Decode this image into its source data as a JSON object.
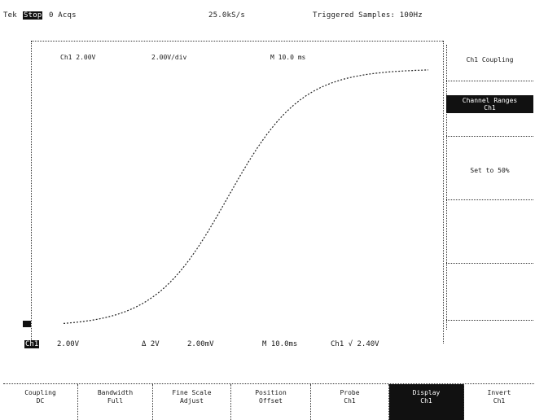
{
  "status": {
    "mode_label": "Tek",
    "run_state": "Stop",
    "acquisitions": "0 Acqs",
    "sample_rate": "25.0kS/s",
    "trigger_info": "Triggered Samples: 100Hz"
  },
  "screen_labels": {
    "top_left": "Ch1 2.00V",
    "top_mid": "2.00V/div",
    "top_right": "M 10.0 ms"
  },
  "trace": {
    "shape": "s-curve",
    "low_level": 0.03,
    "high_level": 0.88
  },
  "readouts": {
    "ch1_marker": "Ch1",
    "r1": "2.00V",
    "r2": "Δ 2V",
    "r3": "2.00mV",
    "r4": "M 10.0ms",
    "r5": "Ch1 √ 2.40V"
  },
  "side_menu": {
    "items": [
      {
        "label": "Ch1 Coupling"
      },
      {
        "label": "Channel Ranges",
        "sub": "Ch1",
        "active": true
      },
      {
        "label": "Set to 50%"
      },
      {
        "label": ""
      },
      {
        "label": ""
      },
      {
        "label": ""
      }
    ]
  },
  "bottom_menu": {
    "items": [
      {
        "label": "Coupling",
        "sub": "DC"
      },
      {
        "label": "Bandwidth",
        "sub": "Full"
      },
      {
        "label": "Fine Scale",
        "sub": "Adjust"
      },
      {
        "label": "Position",
        "sub": "Offset"
      },
      {
        "label": "Probe",
        "sub": "Ch1"
      },
      {
        "label": "Display",
        "sub": "Ch1",
        "active": true
      },
      {
        "label": "Invert",
        "sub": "Ch1"
      }
    ]
  }
}
